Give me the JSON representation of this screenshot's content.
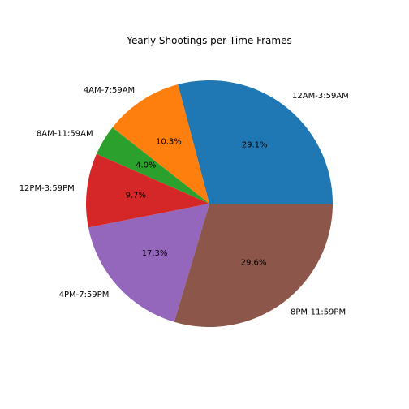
{
  "chart_data": {
    "type": "pie",
    "title": "Yearly Shootings per Time Frames",
    "start_angle_deg": 0,
    "direction": "counterclockwise",
    "categories": [
      "12AM-3:59AM",
      "4AM-7:59AM",
      "8AM-11:59AM",
      "12PM-3:59PM",
      "4PM-7:59PM",
      "8PM-11:59PM"
    ],
    "values": [
      29.1,
      10.3,
      4.0,
      9.7,
      17.3,
      29.6
    ],
    "percent_labels": [
      "29.1%",
      "10.3%",
      "4.0%",
      "9.7%",
      "17.3%",
      "29.6%"
    ],
    "colors": [
      "#1f77b4",
      "#ff7f0e",
      "#2ca02c",
      "#d62728",
      "#9467bd",
      "#8c564b"
    ],
    "legend": "none"
  }
}
